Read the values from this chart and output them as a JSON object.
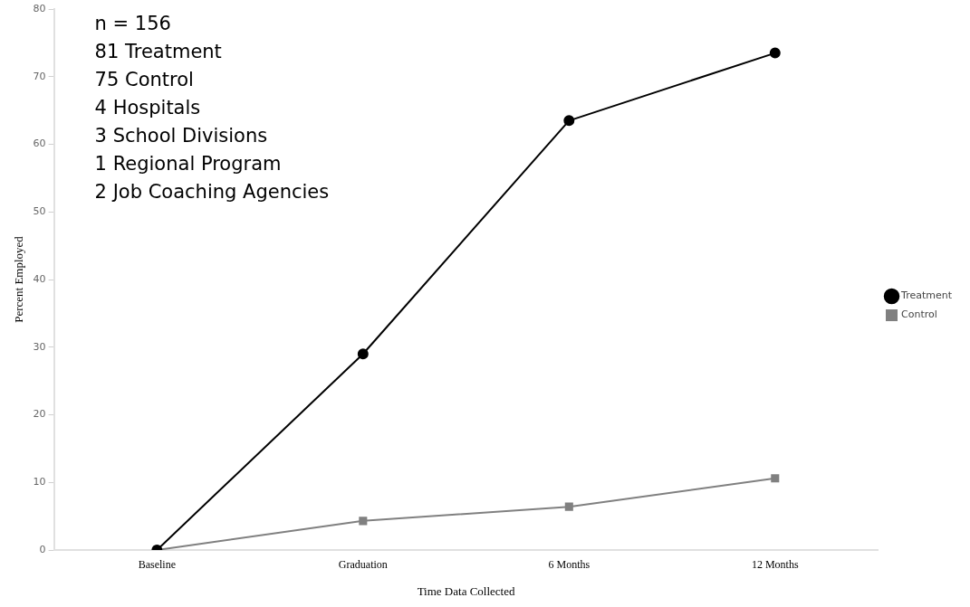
{
  "chart_data": {
    "type": "line",
    "xlabel": "Time Data Collected",
    "ylabel": "Percent Employed",
    "categories": [
      "Baseline",
      "Graduation",
      "6 Months",
      "12 Months"
    ],
    "series": [
      {
        "name": "Treatment",
        "color": "#000000",
        "marker": "circle",
        "values": [
          0,
          29,
          63.5,
          73.5
        ]
      },
      {
        "name": "Control",
        "color": "#808080",
        "marker": "square",
        "values": [
          0,
          4.3,
          6.4,
          10.6
        ]
      }
    ],
    "ylim": [
      0,
      80
    ],
    "yticks": [
      0,
      10,
      20,
      30,
      40,
      50,
      60,
      70,
      80
    ],
    "grid": false,
    "legend": "right",
    "line_style": "solid",
    "annotations": [
      "n = 156",
      "81 Treatment",
      "75 Control",
      "4 Hospitals",
      "3 School Divisions",
      "1 Regional Program",
      "2 Job Coaching Agencies"
    ]
  }
}
